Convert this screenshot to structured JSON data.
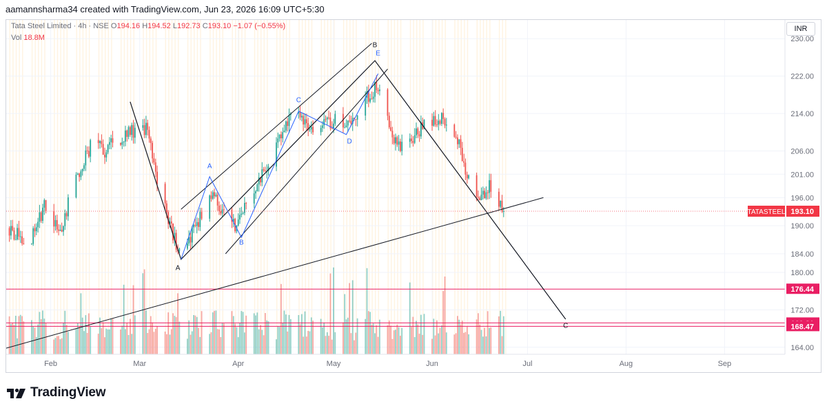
{
  "header": {
    "attribution": "aamannsharma34 created with TradingView.com, Jun 23, 2026 16:09 UTC+5:30"
  },
  "legend": {
    "symbol": "Tata Steel Limited · 4h · NSE",
    "open_label": "O",
    "open": "194.16",
    "high_label": "H",
    "high": "194.52",
    "low_label": "L",
    "low": "192.73",
    "close_label": "C",
    "close": "193.10",
    "change": "−1.07 (−0.55%)",
    "volume_label": "Vol",
    "volume": "18.8M"
  },
  "currency": "INR",
  "footer": {
    "brand": "TradingView"
  },
  "colors": {
    "up": "#26a69a",
    "down": "#ef5350",
    "price_tag": "#f23645",
    "level_line": "#e91e63",
    "wave": "#2962ff",
    "grid_band": "#fff3e0"
  },
  "chart_data": {
    "type": "candlestick",
    "symbol_tag": "TATASTEEL",
    "last_price": 193.1,
    "y_ticks": [
      230.0,
      222.0,
      214.0,
      206.0,
      201.0,
      196.0,
      190.0,
      184.0,
      180.0,
      172.0,
      164.0
    ],
    "x_ticks": [
      {
        "label": "Feb",
        "date": "2026-02-01"
      },
      {
        "label": "Mar",
        "date": "2026-03-01"
      },
      {
        "label": "Apr",
        "date": "2026-04-01"
      },
      {
        "label": "May",
        "date": "2026-05-01"
      },
      {
        "label": "Jun",
        "date": "2026-06-01"
      },
      {
        "label": "Jul",
        "date": "2026-07-01"
      },
      {
        "label": "Aug",
        "date": "2026-08-01"
      },
      {
        "label": "Sep",
        "date": "2026-09-01"
      }
    ],
    "x_range": [
      "2026-01-18",
      "2026-09-20"
    ],
    "y_range": [
      162.5,
      234
    ],
    "horizontal_levels": [
      {
        "price": 176.44,
        "label": "176.44"
      },
      {
        "price": 169.21,
        "label": "169.21"
      },
      {
        "price": 168.47,
        "label": "168.47"
      }
    ],
    "price_path": [
      {
        "date": "2026-01-19",
        "price": 189.5
      },
      {
        "date": "2026-01-25",
        "price": 186.0
      },
      {
        "date": "2026-01-30",
        "price": 194.0
      },
      {
        "date": "2026-02-04",
        "price": 189.0
      },
      {
        "date": "2026-02-08",
        "price": 198.0
      },
      {
        "date": "2026-02-14",
        "price": 208.0
      },
      {
        "date": "2026-02-18",
        "price": 206.0
      },
      {
        "date": "2026-02-25",
        "price": 210.0
      },
      {
        "date": "2026-03-03",
        "price": 210.5
      },
      {
        "date": "2026-03-08",
        "price": 196.0
      },
      {
        "date": "2026-03-14",
        "price": 183.0
      },
      {
        "date": "2026-03-20",
        "price": 192.0
      },
      {
        "date": "2026-03-23",
        "price": 197.0
      },
      {
        "date": "2026-03-31",
        "price": 190.0
      },
      {
        "date": "2026-04-10",
        "price": 203.0
      },
      {
        "date": "2026-04-18",
        "price": 213.5
      },
      {
        "date": "2026-04-26",
        "price": 211.0
      },
      {
        "date": "2026-05-03",
        "price": 213.0
      },
      {
        "date": "2026-05-06",
        "price": 211.0
      },
      {
        "date": "2026-05-10",
        "price": 216.0
      },
      {
        "date": "2026-05-16",
        "price": 221.0
      },
      {
        "date": "2026-05-19",
        "price": 210.0
      },
      {
        "date": "2026-05-22",
        "price": 206.0
      },
      {
        "date": "2026-05-28",
        "price": 210.5
      },
      {
        "date": "2026-06-02",
        "price": 212.5
      },
      {
        "date": "2026-06-07",
        "price": 213.0
      },
      {
        "date": "2026-06-12",
        "price": 201.0
      },
      {
        "date": "2026-06-16",
        "price": 196.0
      },
      {
        "date": "2026-06-20",
        "price": 199.0
      },
      {
        "date": "2026-06-23",
        "price": 193.1
      }
    ],
    "wave_labels": [
      {
        "text": "A",
        "date": "2026-03-13",
        "price": 180.5,
        "color": "black"
      },
      {
        "text": "B",
        "date": "2026-05-14",
        "price": 228.2,
        "color": "black"
      },
      {
        "text": "C",
        "date": "2026-07-13",
        "price": 168.2,
        "color": "black"
      },
      {
        "text": "A",
        "date": "2026-03-23",
        "price": 202.3,
        "color": "blue"
      },
      {
        "text": "B",
        "date": "2026-04-02",
        "price": 186.0,
        "color": "blue"
      },
      {
        "text": "C",
        "date": "2026-04-20",
        "price": 216.4,
        "color": "blue"
      },
      {
        "text": "D",
        "date": "2026-05-06",
        "price": 207.6,
        "color": "blue"
      },
      {
        "text": "E",
        "date": "2026-05-15",
        "price": 226.4,
        "color": "blue"
      }
    ]
  }
}
